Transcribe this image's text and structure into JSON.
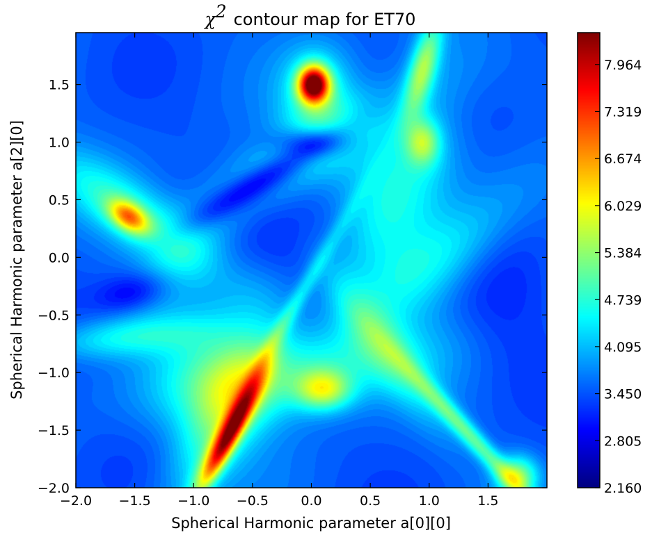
{
  "chart_data": {
    "type": "heatmap",
    "title": {
      "symbol": "χ",
      "superscript": "2",
      "text": "contour map for ET70"
    },
    "xlabel": "Spherical Harmonic parameter a[0][0]",
    "ylabel": "Spherical Harmonic parameter a[2][0]",
    "xlim": [
      -2.0,
      2.0
    ],
    "ylim": [
      -2.0,
      1.95
    ],
    "x_ticks": [
      {
        "value": -2.0,
        "label": "−2.0"
      },
      {
        "value": -1.5,
        "label": "−1.5"
      },
      {
        "value": -1.0,
        "label": "−1.0"
      },
      {
        "value": -0.5,
        "label": "−0.5"
      },
      {
        "value": 0.0,
        "label": "0.0"
      },
      {
        "value": 0.5,
        "label": "0.5"
      },
      {
        "value": 1.0,
        "label": "1.0"
      },
      {
        "value": 1.5,
        "label": "1.5"
      }
    ],
    "y_ticks": [
      {
        "value": -2.0,
        "label": "−2.0"
      },
      {
        "value": -1.5,
        "label": "−1.5"
      },
      {
        "value": -1.0,
        "label": "−1.0"
      },
      {
        "value": -0.5,
        "label": "−0.5"
      },
      {
        "value": 0.0,
        "label": "0.0"
      },
      {
        "value": 0.5,
        "label": "0.5"
      },
      {
        "value": 1.0,
        "label": "1.0"
      },
      {
        "value": 1.5,
        "label": "1.5"
      }
    ],
    "colorbar": {
      "colormap": "jet",
      "vmin": 2.16,
      "vmax": 8.4,
      "ticks": [
        {
          "value": 2.16,
          "label": "2.160"
        },
        {
          "value": 2.805,
          "label": "2.805"
        },
        {
          "value": 3.45,
          "label": "3.450"
        },
        {
          "value": 4.095,
          "label": "4.095"
        },
        {
          "value": 4.739,
          "label": "4.739"
        },
        {
          "value": 5.384,
          "label": "5.384"
        },
        {
          "value": 6.029,
          "label": "6.029"
        },
        {
          "value": 6.674,
          "label": "6.674"
        },
        {
          "value": 7.319,
          "label": "7.319"
        },
        {
          "value": 7.964,
          "label": "7.964"
        }
      ]
    },
    "field": {
      "base": 3.5,
      "features": [
        {
          "x": 0.02,
          "y": 1.5,
          "sx": 0.09,
          "sy": 0.11,
          "rot": 0,
          "amp": 4.6
        },
        {
          "x": 0.05,
          "y": 1.4,
          "sx": 0.22,
          "sy": 0.3,
          "rot": 0,
          "amp": 1.2
        },
        {
          "x": -0.4,
          "y": 0.68,
          "sx": 0.55,
          "sy": 0.09,
          "rot": 32,
          "amp": -1.2
        },
        {
          "x": 0.0,
          "y": 1.0,
          "sx": 0.22,
          "sy": 0.09,
          "rot": 0,
          "amp": -1.1
        },
        {
          "x": -0.05,
          "y": 0.9,
          "sx": 0.7,
          "sy": 0.2,
          "rot": 30,
          "amp": 1.0
        },
        {
          "x": 0.0,
          "y": 0.15,
          "sx": 0.45,
          "sy": 0.4,
          "rot": 0,
          "amp": -0.45
        },
        {
          "x": -1.55,
          "y": 0.35,
          "sx": 0.13,
          "sy": 0.08,
          "rot": -35,
          "amp": 2.3
        },
        {
          "x": -1.55,
          "y": 0.4,
          "sx": 0.55,
          "sy": 0.18,
          "rot": -35,
          "amp": 1.2
        },
        {
          "x": -1.5,
          "y": -0.3,
          "sx": 0.22,
          "sy": 0.12,
          "rot": 15,
          "amp": -0.9
        },
        {
          "x": -1.1,
          "y": 0.0,
          "sx": 0.5,
          "sy": 0.2,
          "rot": 45,
          "amp": 0.6
        },
        {
          "x": -0.7,
          "y": -1.55,
          "sx": 0.06,
          "sy": 0.38,
          "rot": -28,
          "amp": 3.6
        },
        {
          "x": -0.75,
          "y": -1.4,
          "sx": 0.2,
          "sy": 0.55,
          "rot": -28,
          "amp": 1.2
        },
        {
          "x": 0.1,
          "y": -1.15,
          "sx": 0.16,
          "sy": 0.12,
          "rot": 0,
          "amp": 1.8
        },
        {
          "x": -0.1,
          "y": -1.0,
          "sx": 0.8,
          "sy": 0.25,
          "rot": 10,
          "amp": 1.2
        },
        {
          "x": -0.8,
          "y": -1.0,
          "sx": 0.35,
          "sy": 0.4,
          "rot": 0,
          "amp": 0.8
        },
        {
          "x": -1.6,
          "y": -0.7,
          "sx": 0.5,
          "sy": 0.12,
          "rot": 5,
          "amp": 0.9
        },
        {
          "x": 0.95,
          "y": 1.0,
          "sx": 0.1,
          "sy": 0.14,
          "rot": 0,
          "amp": 1.5
        },
        {
          "x": 0.75,
          "y": 0.65,
          "sx": 0.3,
          "sy": 0.7,
          "rot": -22,
          "amp": 1.2
        },
        {
          "x": 0.95,
          "y": 1.65,
          "sx": 0.08,
          "sy": 0.3,
          "rot": -15,
          "amp": 1.8
        },
        {
          "x": 1.1,
          "y": 0.0,
          "sx": 0.22,
          "sy": 0.6,
          "rot": -50,
          "amp": 1.0
        },
        {
          "x": 1.35,
          "y": -1.55,
          "sx": 0.06,
          "sy": 0.6,
          "rot": 42,
          "amp": 1.5
        },
        {
          "x": 1.75,
          "y": -1.9,
          "sx": 0.12,
          "sy": 0.12,
          "rot": 0,
          "amp": 1.8
        },
        {
          "x": 0.6,
          "y": -0.75,
          "sx": 0.14,
          "sy": 0.6,
          "rot": 35,
          "amp": 0.9
        },
        {
          "x": -0.25,
          "y": -0.6,
          "sx": 0.05,
          "sy": 0.9,
          "rot": -30,
          "amp": 0.8
        },
        {
          "x": -0.45,
          "y": -0.3,
          "sx": 0.25,
          "sy": 0.25,
          "rot": 0,
          "amp": 0.4
        },
        {
          "x": 1.4,
          "y": 1.2,
          "sx": 0.6,
          "sy": 0.3,
          "rot": 0,
          "amp": -0.3
        },
        {
          "x": 1.6,
          "y": -0.5,
          "sx": 0.3,
          "sy": 0.5,
          "rot": 0,
          "amp": -0.3
        }
      ]
    }
  }
}
